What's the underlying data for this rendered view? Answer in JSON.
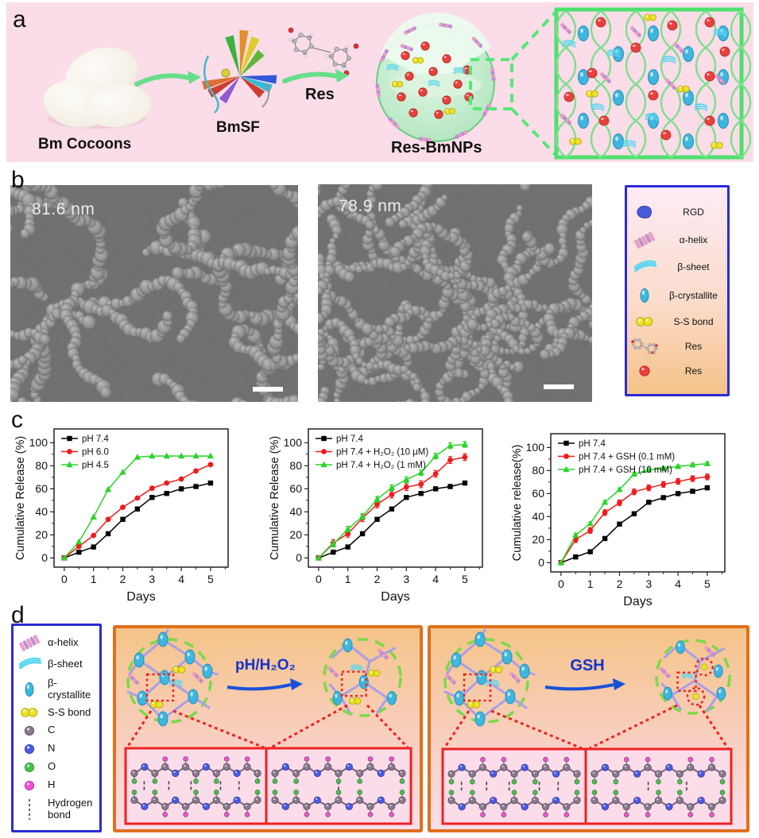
{
  "figure": {
    "panel_labels": {
      "a": "a",
      "b": "b",
      "c": "c",
      "d": "d"
    }
  },
  "panel_a": {
    "cocoons_label": "Bm Cocoons",
    "bmsf_label": "BmSF",
    "res_label": "Res",
    "nps_label": "Res-BmNPs"
  },
  "panel_b": {
    "sem_left_size": "81.6 nm",
    "sem_right_size": "78.9 nm",
    "legend_items": [
      {
        "icon": "rgd-icon",
        "label": "RGD"
      },
      {
        "icon": "alpha-helix-icon",
        "label": "α-helix"
      },
      {
        "icon": "beta-sheet-icon",
        "label": "β-sheet"
      },
      {
        "icon": "beta-crystallite-icon",
        "label": "β-crystallite"
      },
      {
        "icon": "ss-bond-icon",
        "label": "S-S bond"
      },
      {
        "icon": "res-molecule-icon",
        "label": "Res"
      },
      {
        "icon": "res-sphere-icon",
        "label": "Res"
      }
    ]
  },
  "chart_data": [
    {
      "type": "line",
      "x": [
        0,
        0.5,
        1,
        1.5,
        2,
        2.5,
        3,
        3.5,
        4,
        4.5,
        5
      ],
      "xlabel": "Days",
      "ylabel": "Cumulative Release (%)",
      "xlim": [
        0,
        5
      ],
      "ylim": [
        0,
        100
      ],
      "legend_position": "top-left",
      "grid": false,
      "series": [
        {
          "name": "pH 7.4",
          "color": "#000000",
          "marker": "square",
          "err": 0,
          "values": [
            0,
            5,
            9.5,
            21,
            33.5,
            42.5,
            52.5,
            56,
            60,
            62,
            65
          ]
        },
        {
          "name": "pH 6.0",
          "color": "#ee1c1c",
          "marker": "circle",
          "err": 0,
          "values": [
            0,
            10,
            19.5,
            33.5,
            44,
            52,
            60.5,
            65,
            68.5,
            75.5,
            81
          ]
        },
        {
          "name": "pH 4.5",
          "color": "#2cd32c",
          "marker": "triangle",
          "err": 0,
          "values": [
            0,
            14,
            35.5,
            59.5,
            74.5,
            87.5,
            88.5,
            88.5,
            88.5,
            88.5,
            88.5
          ]
        }
      ]
    },
    {
      "type": "line",
      "x": [
        0,
        0.5,
        1,
        1.5,
        2,
        2.5,
        3,
        3.5,
        4,
        4.5,
        5
      ],
      "xlabel": "Days",
      "ylabel": "Cumulative Release (%)",
      "xlim": [
        0,
        5
      ],
      "ylim": [
        0,
        100
      ],
      "legend_position": "top-left",
      "grid": false,
      "series": [
        {
          "name": "pH 7.4",
          "color": "#000000",
          "marker": "square",
          "err": 0,
          "values": [
            0,
            5,
            9.5,
            21,
            33.5,
            42.5,
            52.5,
            56,
            60,
            62,
            65
          ]
        },
        {
          "name": "pH 7.4 + H₂O₂ (10 μM)",
          "color": "#ee1c1c",
          "marker": "circle",
          "err": 3,
          "values": [
            0,
            13,
            21,
            34.5,
            46.5,
            55,
            61.5,
            64,
            73,
            85,
            87.5
          ]
        },
        {
          "name": "pH 7.4 + H₂O₂ (1 mM)",
          "color": "#2cd32c",
          "marker": "triangle",
          "err": 2.5,
          "values": [
            0,
            12,
            25,
            36,
            51,
            61,
            68,
            74,
            88.5,
            97.5,
            98.5
          ]
        }
      ]
    },
    {
      "type": "line",
      "x": [
        0,
        0.5,
        1,
        1.5,
        2,
        2.5,
        3,
        3.5,
        4,
        4.5,
        5
      ],
      "xlabel": "Days",
      "ylabel": "Cumulative release(%)",
      "xlim": [
        0,
        5
      ],
      "ylim": [
        0,
        100
      ],
      "legend_position": "top-left",
      "grid": false,
      "series": [
        {
          "name": "pH 7.4",
          "color": "#000000",
          "marker": "square",
          "err": 0,
          "values": [
            0,
            5,
            9.5,
            21,
            33.5,
            42.5,
            52.5,
            56.5,
            60,
            62,
            65
          ]
        },
        {
          "name": "pH 7.4 + GSH (0.1 mM)",
          "color": "#ee1c1c",
          "marker": "circle",
          "err": 2.5,
          "values": [
            0,
            20,
            28,
            43.5,
            52,
            61.5,
            65,
            68,
            70.5,
            73,
            74.5
          ]
        },
        {
          "name": "pH 7.4 + GSH (10 mM)",
          "color": "#2cd32c",
          "marker": "triangle",
          "err": 1.5,
          "values": [
            0,
            24,
            34,
            52.5,
            63.5,
            77,
            80.5,
            82,
            83.5,
            85,
            86
          ]
        }
      ]
    }
  ],
  "panel_d": {
    "legend_items": [
      {
        "icon": "alpha-helix-icon",
        "label": "α-helix"
      },
      {
        "icon": "beta-sheet-icon",
        "label": "β-sheet"
      },
      {
        "icon": "beta-crystallite-icon",
        "label": "β-crystallite"
      },
      {
        "icon": "ss-bond-icon",
        "label": "S-S bond"
      },
      {
        "icon": "atom-c-icon",
        "label": "C"
      },
      {
        "icon": "atom-n-icon",
        "label": "N"
      },
      {
        "icon": "atom-o-icon",
        "label": "O"
      },
      {
        "icon": "atom-h-icon",
        "label": "H"
      },
      {
        "icon": "hydrogen-bond-icon",
        "label": "Hydrogen bond"
      }
    ],
    "reaction_left": {
      "label": "pH/H₂O₂"
    },
    "reaction_right": {
      "label": "GSH"
    }
  },
  "colors": {
    "panel_a_bg": "#fbdce9",
    "inset_border": "#4ee06e",
    "green_arrow": "#66df8a",
    "legend_border_blue": "#2b2bd6",
    "orange_border": "#e0701c",
    "red_annotation": "#ee2222",
    "blue_arrow": "#1a50d8",
    "series_black": "#000000",
    "series_red": "#ee1c1c",
    "series_green": "#2cd32c",
    "beta_crystallite": "#3eb6de",
    "ss_bond_yellow": "#ece32a",
    "res_red": "#e8413d",
    "network_lavender": "#a8a0e6",
    "dashed_circle_green": "#7ed84a"
  }
}
